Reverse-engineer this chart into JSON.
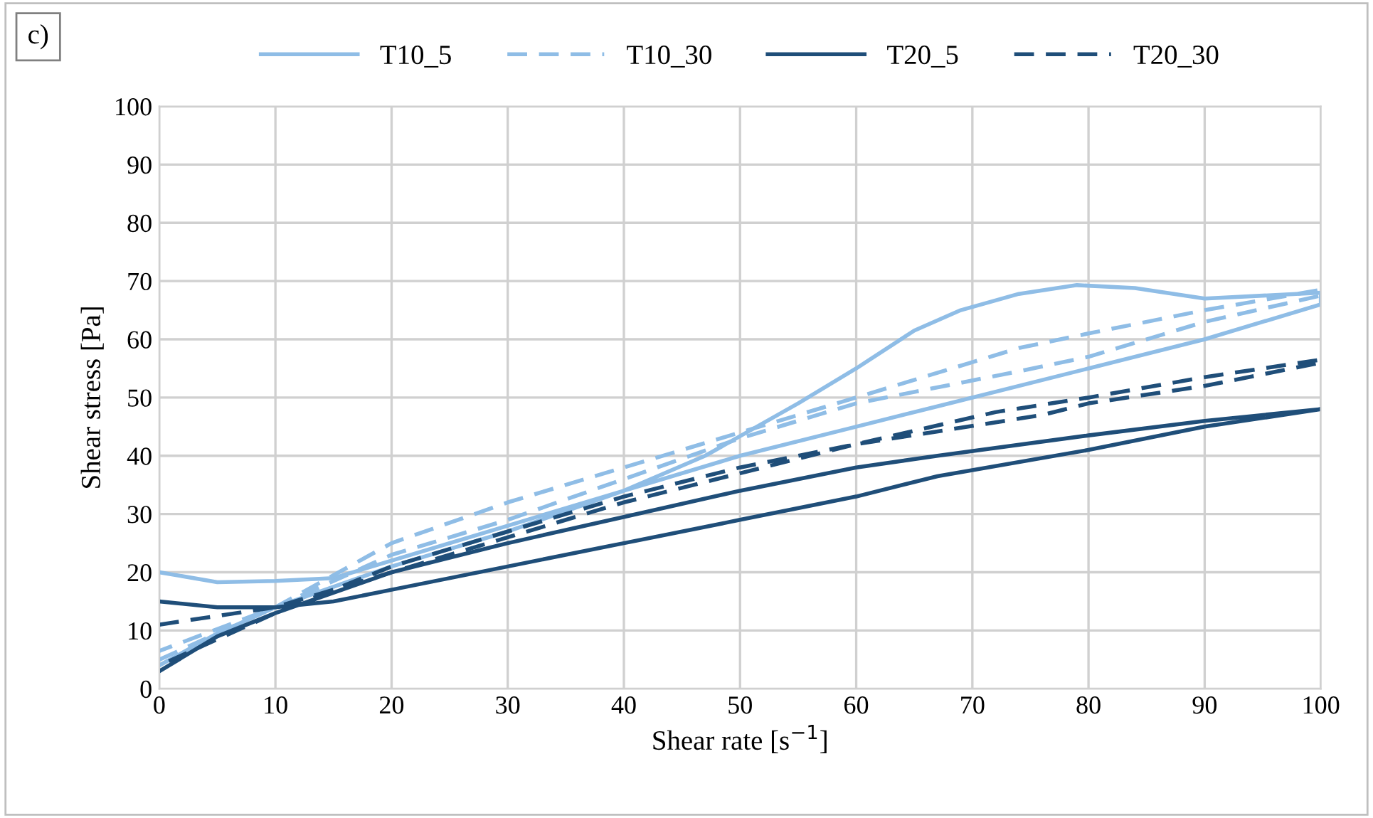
{
  "chart_data": {
    "type": "line",
    "xlabel": "Shear rate [s$^{−1}$]",
    "ylabel": "Shear stress [Pa]",
    "annotations": [
      "c)"
    ],
    "xlim": [
      0,
      100
    ],
    "ylim": [
      0,
      100
    ],
    "xticks": [
      0,
      10,
      20,
      30,
      40,
      50,
      60,
      70,
      80,
      90,
      100
    ],
    "yticks": [
      0,
      10,
      20,
      30,
      40,
      50,
      60,
      70,
      80,
      90,
      100
    ],
    "grid": true,
    "legend": "top",
    "marker": "none",
    "series": [
      {
        "name": "T10_5",
        "color": "#8fbde6",
        "line_style": "solid",
        "x": [
          0,
          5,
          10,
          20,
          30,
          40,
          47,
          55,
          60,
          65,
          69,
          74,
          79,
          84,
          90,
          100,
          100,
          90,
          80,
          67,
          60,
          50,
          40,
          30,
          20,
          15,
          10,
          5,
          0
        ],
        "values": [
          4,
          9.5,
          14,
          21,
          27,
          34,
          40,
          49,
          55,
          61.5,
          65,
          67.8,
          69.3,
          68.8,
          67,
          68,
          66,
          60,
          55,
          48.5,
          45,
          40,
          34,
          28,
          22,
          19,
          18.5,
          18.3,
          20
        ]
      },
      {
        "name": "T10_30",
        "color": "#8fbde6",
        "line_style": "dashed",
        "x": [
          0,
          10,
          20,
          30,
          40,
          50,
          60,
          74,
          80,
          90,
          100,
          100,
          90,
          80,
          74,
          60,
          50,
          40,
          30,
          20,
          10,
          0
        ],
        "values": [
          5,
          14,
          25,
          32,
          38,
          44,
          50,
          58.5,
          61,
          65,
          68.5,
          67.5,
          63,
          57,
          54.5,
          49,
          43,
          36,
          29,
          23,
          14,
          6.5
        ]
      },
      {
        "name": "T20_5",
        "color": "#1f4e79",
        "line_style": "solid",
        "x": [
          0,
          5,
          10,
          15,
          20,
          30,
          40,
          50,
          60,
          67,
          80,
          90,
          100,
          100,
          90,
          80,
          67,
          60,
          50,
          40,
          30,
          20,
          10,
          5,
          0
        ],
        "values": [
          15,
          14,
          14,
          15,
          17,
          21,
          25,
          29,
          33,
          36.5,
          41,
          45,
          48,
          48,
          46,
          43.5,
          40,
          38,
          34,
          29.5,
          25,
          20,
          13,
          9,
          3
        ]
      },
      {
        "name": "T20_30",
        "color": "#1f4e79",
        "line_style": "dashed",
        "x": [
          0,
          10,
          20,
          30,
          40,
          50,
          60,
          72,
          80,
          90,
          100,
          100,
          90,
          80,
          76,
          60,
          50,
          40,
          30,
          20,
          10,
          0
        ],
        "values": [
          11,
          14,
          20,
          26,
          32,
          37,
          42,
          47.5,
          50,
          53.5,
          56.5,
          56,
          52,
          49,
          47,
          42,
          38,
          33,
          27,
          21,
          13,
          4
        ]
      }
    ]
  }
}
